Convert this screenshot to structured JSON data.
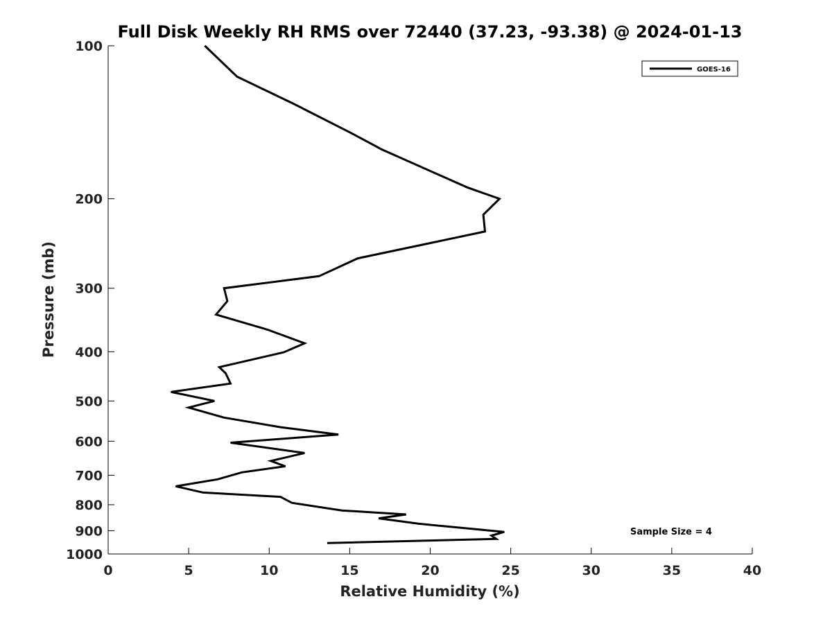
{
  "chart_data": {
    "type": "line",
    "title": "Full Disk Weekly RH RMS over 72440 (37.23, -93.38) @ 2024-01-13",
    "xlabel": "Relative Humidity (%)",
    "ylabel": "Pressure (mb)",
    "xlim": [
      0,
      40
    ],
    "ylim": [
      1000,
      100
    ],
    "yscale": "log",
    "grid": false,
    "legend_position": "top-right",
    "xticks": [
      0,
      5,
      10,
      15,
      20,
      25,
      30,
      35,
      40
    ],
    "xtick_labels": [
      "0",
      "5",
      "10",
      "15",
      "20",
      "25",
      "30",
      "35",
      "40"
    ],
    "yticks": [
      100,
      200,
      300,
      400,
      500,
      600,
      700,
      800,
      900,
      1000
    ],
    "ytick_labels": [
      "100",
      "200",
      "300",
      "400",
      "500",
      "600",
      "700",
      "800",
      "900",
      "1000"
    ],
    "annotation": "Sample Size = 4",
    "series": [
      {
        "name": "GOES-16",
        "color": "#000000",
        "points": [
          [
            6.0,
            100
          ],
          [
            8.0,
            115
          ],
          [
            11.5,
            130
          ],
          [
            15.0,
            148
          ],
          [
            17.0,
            160
          ],
          [
            22.3,
            190
          ],
          [
            24.3,
            200
          ],
          [
            23.3,
            215
          ],
          [
            23.4,
            232
          ],
          [
            15.5,
            262
          ],
          [
            13.1,
            284
          ],
          [
            7.2,
            300
          ],
          [
            7.4,
            318
          ],
          [
            6.7,
            338
          ],
          [
            9.9,
            362
          ],
          [
            12.2,
            385
          ],
          [
            10.9,
            401
          ],
          [
            6.9,
            429
          ],
          [
            7.3,
            441
          ],
          [
            7.6,
            462
          ],
          [
            3.9,
            480
          ],
          [
            6.6,
            500
          ],
          [
            5.0,
            515
          ],
          [
            7.2,
            539
          ],
          [
            10.7,
            563
          ],
          [
            14.3,
            582
          ],
          [
            7.6,
            604
          ],
          [
            12.2,
            633
          ],
          [
            10.1,
            656
          ],
          [
            11.0,
            672
          ],
          [
            8.3,
            691
          ],
          [
            6.8,
            713
          ],
          [
            4.2,
            736
          ],
          [
            5.9,
            757
          ],
          [
            10.7,
            772
          ],
          [
            11.4,
            793
          ],
          [
            14.5,
            821
          ],
          [
            18.5,
            836
          ],
          [
            16.8,
            851
          ],
          [
            19.3,
            872
          ],
          [
            24.6,
            905
          ],
          [
            23.8,
            920
          ],
          [
            24.1,
            934
          ],
          [
            13.6,
            952
          ]
        ]
      }
    ]
  }
}
